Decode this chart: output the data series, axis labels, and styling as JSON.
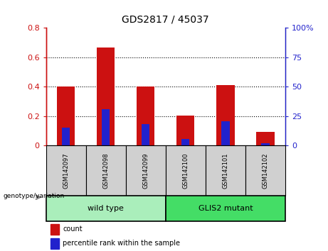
{
  "title": "GDS2817 / 45037",
  "categories": [
    "GSM142097",
    "GSM142098",
    "GSM142099",
    "GSM142100",
    "GSM142101",
    "GSM142102"
  ],
  "red_values": [
    0.4,
    0.665,
    0.4,
    0.205,
    0.41,
    0.095
  ],
  "blue_values": [
    0.12,
    0.245,
    0.145,
    0.045,
    0.165,
    0.015
  ],
  "ylim_left": [
    0,
    0.8
  ],
  "ylim_right": [
    0,
    100
  ],
  "yticks_left": [
    0,
    0.2,
    0.4,
    0.6,
    0.8
  ],
  "yticks_right": [
    0,
    25,
    50,
    75,
    100
  ],
  "ytick_labels_left": [
    "0",
    "0.2",
    "0.4",
    "0.6",
    "0.8"
  ],
  "ytick_labels_right": [
    "0",
    "25",
    "50",
    "75",
    "100%"
  ],
  "bar_width": 0.45,
  "blue_bar_width": 0.2,
  "red_color": "#cc1111",
  "blue_color": "#2222cc",
  "group1_label": "wild type",
  "group2_label": "GLIS2 mutant",
  "group1_color": "#aaeebb",
  "group2_color": "#44dd66",
  "group_label": "genotype/variation",
  "legend_red": "count",
  "legend_blue": "percentile rank within the sample",
  "left_axis_color": "#cc1111",
  "right_axis_color": "#2222cc",
  "tick_label_bg": "#d0d0d0"
}
